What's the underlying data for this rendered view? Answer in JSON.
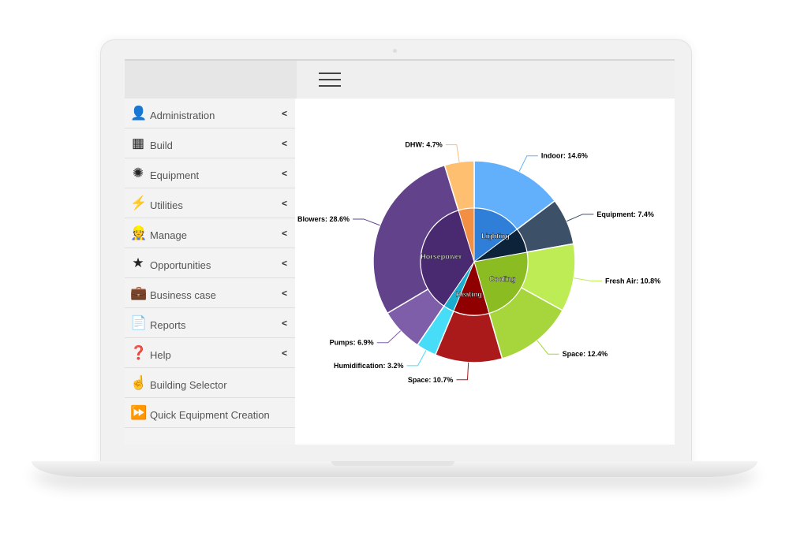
{
  "header": {
    "menu_icon": "hamburger-icon"
  },
  "sidebar": {
    "items": [
      {
        "label": "Administration",
        "icon": "user-tie-icon",
        "glyph": "👤",
        "chevron": true
      },
      {
        "label": "Build",
        "icon": "building-icon",
        "glyph": "▦",
        "chevron": true
      },
      {
        "label": "Equipment",
        "icon": "fan-icon",
        "glyph": "✺",
        "chevron": true
      },
      {
        "label": "Utilities",
        "icon": "bolt-icon",
        "glyph": "⚡",
        "chevron": true
      },
      {
        "label": "Manage",
        "icon": "worker-icon",
        "glyph": "👷",
        "chevron": true
      },
      {
        "label": "Opportunities",
        "icon": "star-icon",
        "glyph": "★",
        "chevron": true
      },
      {
        "label": "Business case",
        "icon": "briefcase-icon",
        "glyph": "💼",
        "chevron": true
      },
      {
        "label": "Reports",
        "icon": "report-icon",
        "glyph": "📄",
        "chevron": true
      },
      {
        "label": "Help",
        "icon": "question-circle-icon",
        "glyph": "❓",
        "chevron": true
      },
      {
        "label": "Building Selector",
        "icon": "hand-pointer-icon",
        "glyph": "☝",
        "chevron": false
      },
      {
        "label": "Quick Equipment Creation",
        "icon": "fast-forward-icon",
        "glyph": "⏩",
        "chevron": false
      }
    ],
    "chevron_glyph": "<"
  },
  "chart_data": {
    "type": "pie",
    "subtype": "two-ring donut (sunburst)",
    "inner": [
      {
        "name": "Lighting",
        "value": 22.0,
        "color": "#2f7ed8"
      },
      {
        "name": "Cooling",
        "value": 23.2,
        "color": "#8bbc21"
      },
      {
        "name": "Heating",
        "value": 13.9,
        "color": "#910000"
      },
      {
        "name": "Horsepower",
        "value": 35.5,
        "color": "#492970"
      },
      {
        "name": "",
        "value": 4.7,
        "color": "#f28f43"
      }
    ],
    "outer": [
      {
        "name": "Indoor",
        "label": "Indoor: 14.6%",
        "value": 14.6,
        "color": "#62b0fb"
      },
      {
        "name": "Equipment",
        "label": "Equipment: 7.4%",
        "value": 7.4,
        "color": "#3c5068"
      },
      {
        "name": "Fresh Air",
        "label": "Fresh Air: 10.8%",
        "value": 10.8,
        "color": "#bdec55"
      },
      {
        "name": "Space",
        "label": "Space: 12.4%",
        "value": 12.4,
        "color": "#a6d63c"
      },
      {
        "name": "Space",
        "label": "Space: 10.7%",
        "value": 10.7,
        "color": "#ab1a1a"
      },
      {
        "name": "Humidification",
        "label": "Humidification: 3.2%",
        "value": 3.2,
        "color": "#47dcf8"
      },
      {
        "name": "Pumps",
        "label": "Pumps: 6.9%",
        "value": 6.9,
        "color": "#7e5ea8"
      },
      {
        "name": "Blowers",
        "label": "Blowers: 28.6%",
        "value": 28.6,
        "color": "#62428a"
      },
      {
        "name": "DHW",
        "label": "DHW: 4.7%",
        "value": 4.7,
        "color": "#ffbf70"
      }
    ],
    "inner_dark_colors": [
      "#2f7ed8",
      "#0d233a",
      "#8bbc21",
      "#910000",
      "#1aadce",
      "#492970",
      "#f28f43"
    ]
  }
}
